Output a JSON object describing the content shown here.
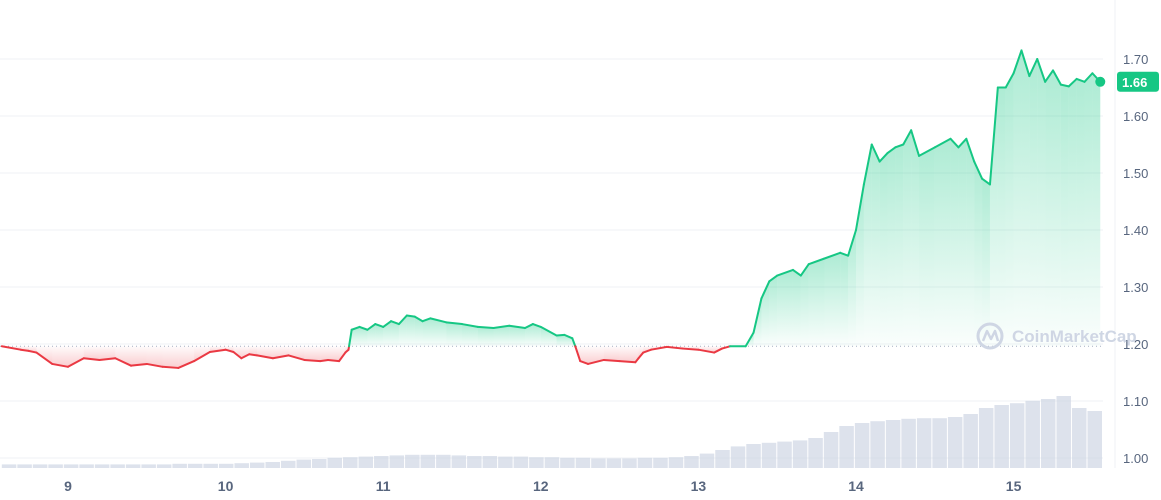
{
  "watermark": {
    "text": "CoinMarketCap",
    "logo_icon": "coinmarketcap-logo-icon"
  },
  "current_price_label": "1.66",
  "colors": {
    "up": "#16c784",
    "down": "#ea3943",
    "grid": "#eff2f5",
    "baseline": "#a6b0c3",
    "volume": "#cfd6e4",
    "axis_text": "#58667e"
  },
  "chart_data": {
    "type": "line",
    "title": "",
    "xlabel": "",
    "ylabel": "",
    "x_ticks": [
      "9",
      "10",
      "11",
      "12",
      "13",
      "14",
      "15"
    ],
    "y_ticks": [
      "1.00",
      "1.10",
      "1.20",
      "1.30",
      "1.40",
      "1.50",
      "1.60",
      "1.70"
    ],
    "ylim": [
      0.98,
      1.74
    ],
    "xlim": [
      8.58,
      15.6
    ],
    "baseline_value": 1.196,
    "last_value": 1.66,
    "grid": "horizontal",
    "series": [
      {
        "x": [
          8.58,
          8.7,
          8.75,
          8.8,
          8.9,
          9.0,
          9.1,
          9.2,
          9.3,
          9.4,
          9.5,
          9.6,
          9.7,
          9.8,
          9.9,
          10.0,
          10.05,
          10.1,
          10.15,
          10.2,
          10.3,
          10.4,
          10.5,
          10.6,
          10.65,
          10.72,
          10.76,
          10.78,
          10.8,
          10.85,
          10.9,
          10.95,
          11.0,
          11.05,
          11.1,
          11.15,
          11.2,
          11.25,
          11.3,
          11.4,
          11.5,
          11.6,
          11.7,
          11.8,
          11.9,
          11.95,
          12.0,
          12.1,
          12.15,
          12.2,
          12.22,
          12.25,
          12.3,
          12.4,
          12.5,
          12.6,
          12.62,
          12.65,
          12.7,
          12.8,
          12.9,
          13.0,
          13.1,
          13.15,
          13.2,
          13.3,
          13.35,
          13.4,
          13.45,
          13.5,
          13.6,
          13.65,
          13.7,
          13.8,
          13.9,
          13.95,
          14.0,
          14.05,
          14.1,
          14.15,
          14.2,
          14.25,
          14.3,
          14.35,
          14.4,
          14.5,
          14.6,
          14.65,
          14.7,
          14.75,
          14.8,
          14.85,
          14.9,
          14.95,
          15.0,
          15.05,
          15.1,
          15.15,
          15.2,
          15.25,
          15.3,
          15.35,
          15.4,
          15.45,
          15.5,
          15.55
        ],
        "y": [
          1.196,
          1.19,
          1.188,
          1.185,
          1.165,
          1.16,
          1.175,
          1.172,
          1.175,
          1.162,
          1.165,
          1.16,
          1.158,
          1.17,
          1.186,
          1.19,
          1.186,
          1.175,
          1.182,
          1.18,
          1.175,
          1.18,
          1.172,
          1.17,
          1.172,
          1.17,
          1.185,
          1.19,
          1.225,
          1.23,
          1.225,
          1.235,
          1.23,
          1.24,
          1.235,
          1.25,
          1.248,
          1.24,
          1.245,
          1.238,
          1.235,
          1.23,
          1.228,
          1.232,
          1.228,
          1.235,
          1.23,
          1.215,
          1.216,
          1.21,
          1.195,
          1.17,
          1.165,
          1.172,
          1.17,
          1.168,
          1.175,
          1.185,
          1.19,
          1.195,
          1.192,
          1.19,
          1.185,
          1.192,
          1.196,
          1.196,
          1.22,
          1.28,
          1.31,
          1.32,
          1.33,
          1.32,
          1.34,
          1.35,
          1.36,
          1.355,
          1.4,
          1.48,
          1.55,
          1.52,
          1.535,
          1.545,
          1.55,
          1.575,
          1.53,
          1.545,
          1.56,
          1.545,
          1.56,
          1.52,
          1.49,
          1.48,
          1.65,
          1.65,
          1.675,
          1.715,
          1.67,
          1.7,
          1.66,
          1.68,
          1.655,
          1.652,
          1.665,
          1.66,
          1.675,
          1.66
        ]
      }
    ],
    "volume": [
      0.006,
      0.006,
      0.006,
      0.006,
      0.006,
      0.006,
      0.006,
      0.006,
      0.006,
      0.006,
      0.006,
      0.007,
      0.007,
      0.007,
      0.007,
      0.008,
      0.009,
      0.01,
      0.012,
      0.014,
      0.015,
      0.017,
      0.018,
      0.019,
      0.02,
      0.021,
      0.022,
      0.022,
      0.022,
      0.021,
      0.02,
      0.02,
      0.019,
      0.019,
      0.018,
      0.018,
      0.017,
      0.017,
      0.016,
      0.016,
      0.016,
      0.017,
      0.017,
      0.018,
      0.02,
      0.024,
      0.03,
      0.036,
      0.04,
      0.042,
      0.044,
      0.046,
      0.05,
      0.06,
      0.07,
      0.075,
      0.078,
      0.08,
      0.082,
      0.083,
      0.083,
      0.085,
      0.09,
      0.1,
      0.105,
      0.108,
      0.112,
      0.115,
      0.12,
      0.1,
      0.095
    ]
  }
}
